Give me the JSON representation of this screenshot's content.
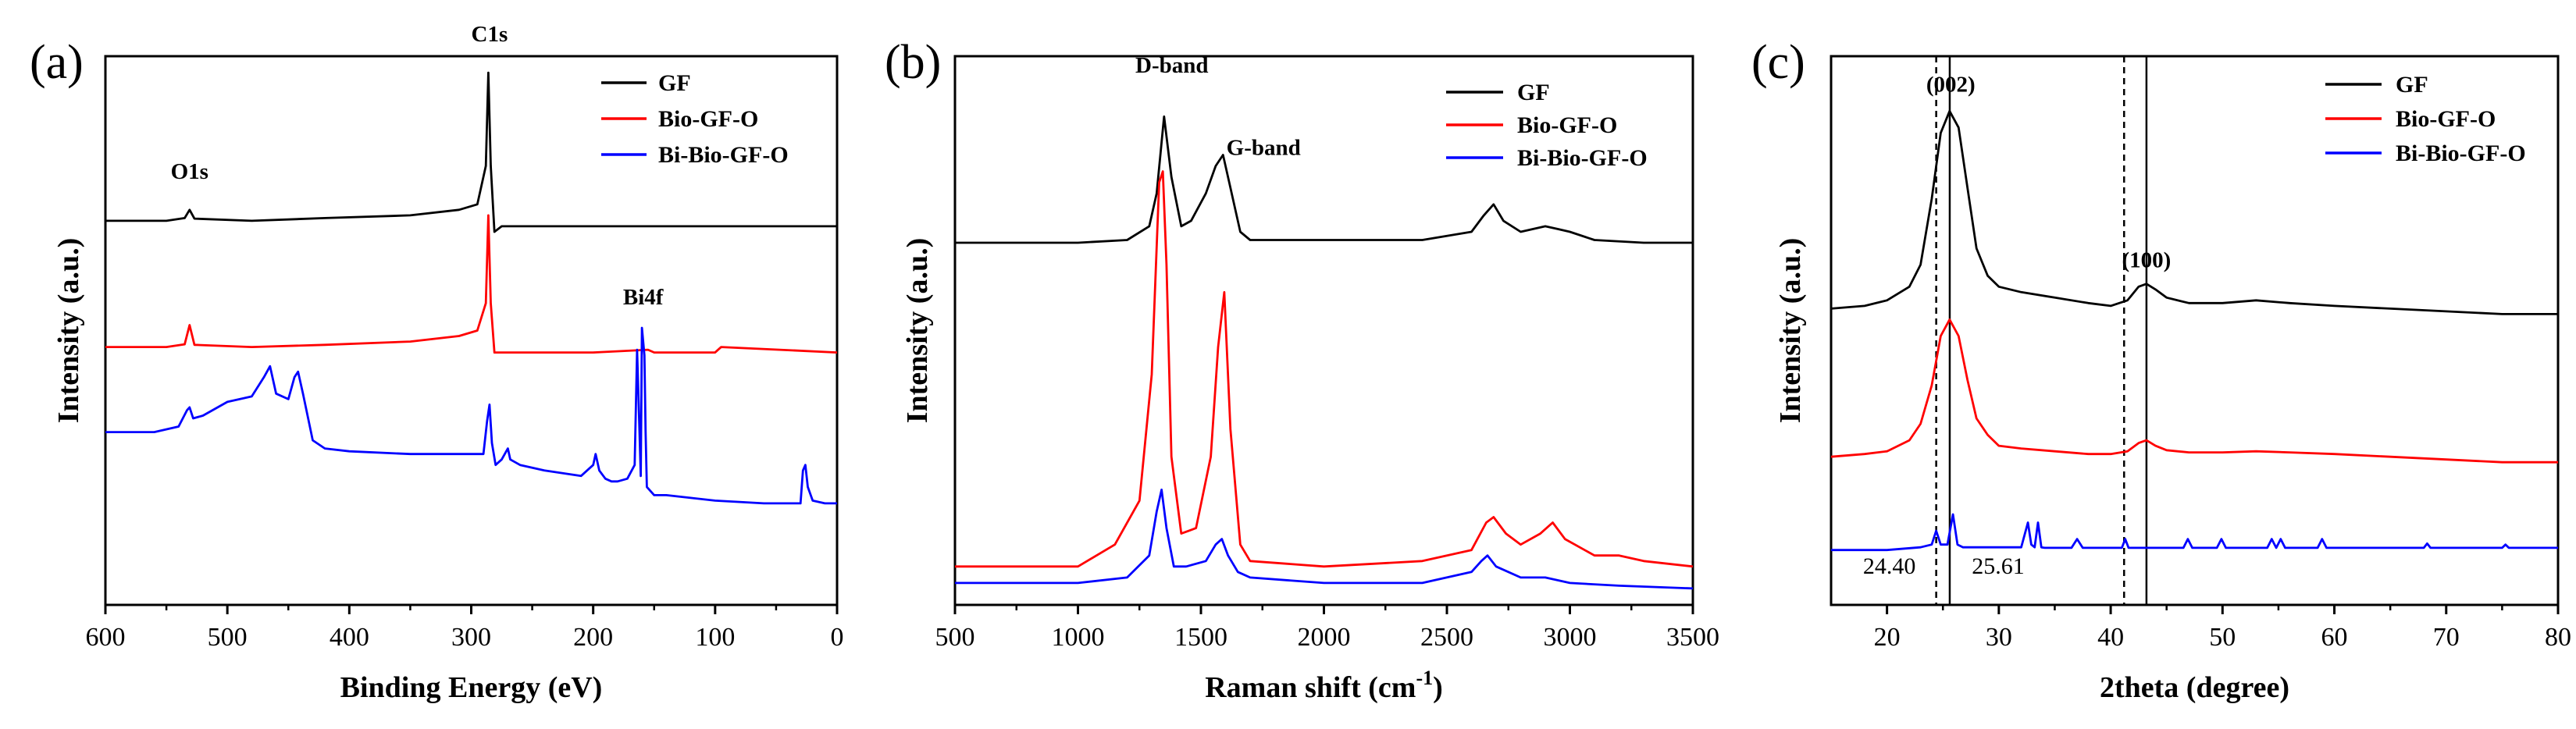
{
  "colors": {
    "GF": "#000000",
    "Bio-GF-O": "#ff0000",
    "Bi-Bio-GF-O": "#0000ff",
    "axis": "#000000"
  },
  "chart_data": [
    {
      "type": "line",
      "panel": "(a)",
      "xlabel": "Binding Energy (eV)",
      "ylabel": "Intensity (a.u.)",
      "xlim": [
        600,
        0
      ],
      "x_reversed": true,
      "y_ticks_shown": false,
      "xticks": [
        "600",
        "500",
        "400",
        "300",
        "200",
        "100",
        "0"
      ],
      "legend": {
        "position": "top-right",
        "entries": [
          "GF",
          "Bio-GF-O",
          "Bi-Bio-GF-O"
        ]
      },
      "annotations": [
        {
          "text": "O1s",
          "x": 531
        },
        {
          "text": "C1s",
          "x": 285
        },
        {
          "text": "Bi4f",
          "x": 159
        }
      ],
      "series": [
        {
          "name": "GF",
          "offset": 0.7,
          "x": [
            600,
            550,
            535,
            531,
            527,
            480,
            420,
            350,
            310,
            295,
            288,
            286,
            284,
            281,
            275,
            200,
            100,
            0
          ],
          "y": [
            0.0,
            0.0,
            0.005,
            0.02,
            0.004,
            0.0,
            0.005,
            0.01,
            0.02,
            0.03,
            0.1,
            0.27,
            0.1,
            -0.02,
            -0.01,
            -0.01,
            -0.01,
            -0.01
          ]
        },
        {
          "name": "Bio-GF-O",
          "offset": 0.47,
          "x": [
            600,
            550,
            535,
            531,
            527,
            480,
            420,
            350,
            310,
            295,
            288,
            286,
            284,
            281,
            275,
            200,
            155,
            150,
            100,
            95,
            0
          ],
          "y": [
            0.0,
            0.0,
            0.005,
            0.04,
            0.004,
            0.0,
            0.004,
            0.01,
            0.02,
            0.03,
            0.08,
            0.24,
            0.08,
            -0.01,
            -0.01,
            -0.01,
            -0.005,
            -0.01,
            -0.01,
            0.0,
            -0.01
          ]
        },
        {
          "name": "Bi-Bio-GF-O",
          "offset": 0.195,
          "x": [
            600,
            560,
            540,
            533,
            531,
            528,
            520,
            500,
            480,
            470,
            465,
            460,
            450,
            445,
            442,
            438,
            430,
            420,
            400,
            350,
            300,
            290,
            287,
            285,
            283,
            280,
            275,
            270,
            268,
            260,
            240,
            210,
            200,
            198,
            195,
            190,
            185,
            180,
            172,
            166,
            164,
            162,
            161,
            160,
            158,
            157,
            156,
            150,
            140,
            120,
            100,
            60,
            30,
            28,
            26,
            24,
            20,
            10,
            0
          ],
          "y": [
            0.12,
            0.12,
            0.13,
            0.16,
            0.165,
            0.145,
            0.15,
            0.175,
            0.185,
            0.22,
            0.24,
            0.19,
            0.18,
            0.22,
            0.23,
            0.19,
            0.105,
            0.09,
            0.085,
            0.08,
            0.08,
            0.08,
            0.14,
            0.17,
            0.1,
            0.06,
            0.07,
            0.09,
            0.07,
            0.06,
            0.05,
            0.04,
            0.06,
            0.08,
            0.05,
            0.035,
            0.03,
            0.03,
            0.035,
            0.06,
            0.27,
            0.12,
            0.04,
            0.31,
            0.26,
            0.12,
            0.02,
            0.005,
            0.005,
            0.0,
            -0.005,
            -0.01,
            -0.01,
            0.05,
            0.06,
            0.02,
            -0.005,
            -0.01,
            -0.01
          ]
        }
      ]
    },
    {
      "type": "line",
      "panel": "(b)",
      "xlabel": "Raman shift (cm",
      "xlabel_sup": "-1",
      "xlabel_end": ")",
      "ylabel": "Intensity (a.u.)",
      "xlim": [
        500,
        3500
      ],
      "y_ticks_shown": false,
      "xticks": [
        "500",
        "1000",
        "1500",
        "2000",
        "2500",
        "3000",
        "3500"
      ],
      "legend": {
        "position": "top-right",
        "entries": [
          "GF",
          "Bio-GF-O",
          "Bi-Bio-GF-O"
        ]
      },
      "annotations": [
        {
          "text": "D-band",
          "x": 1350
        },
        {
          "text": "G-band",
          "x": 1580
        }
      ],
      "series": [
        {
          "name": "GF",
          "offset": 0.66,
          "x": [
            500,
            1000,
            1200,
            1290,
            1320,
            1350,
            1380,
            1420,
            1460,
            1520,
            1560,
            1590,
            1620,
            1660,
            1700,
            2000,
            2400,
            2600,
            2650,
            2690,
            2730,
            2800,
            2900,
            2950,
            3000,
            3100,
            3300,
            3500
          ],
          "y": [
            0.0,
            0.0,
            0.005,
            0.03,
            0.09,
            0.23,
            0.12,
            0.03,
            0.04,
            0.09,
            0.14,
            0.16,
            0.1,
            0.02,
            0.005,
            0.005,
            0.005,
            0.02,
            0.05,
            0.07,
            0.04,
            0.02,
            0.03,
            0.025,
            0.02,
            0.005,
            0.0,
            0.0
          ]
        },
        {
          "name": "Bio-GF-O",
          "offset": 0.07,
          "x": [
            500,
            1000,
            1150,
            1250,
            1300,
            1330,
            1345,
            1360,
            1380,
            1420,
            1480,
            1540,
            1570,
            1595,
            1620,
            1660,
            1700,
            2000,
            2400,
            2600,
            2660,
            2690,
            2740,
            2800,
            2880,
            2930,
            2980,
            3100,
            3200,
            3300,
            3500
          ],
          "y": [
            0.0,
            0.0,
            0.04,
            0.12,
            0.35,
            0.7,
            0.72,
            0.55,
            0.2,
            0.06,
            0.07,
            0.2,
            0.4,
            0.5,
            0.25,
            0.04,
            0.01,
            0.0,
            0.01,
            0.03,
            0.08,
            0.09,
            0.06,
            0.04,
            0.06,
            0.08,
            0.05,
            0.02,
            0.02,
            0.01,
            0.0
          ]
        },
        {
          "name": "Bi-Bio-GF-O",
          "offset": 0.04,
          "x": [
            500,
            1000,
            1200,
            1290,
            1320,
            1340,
            1360,
            1390,
            1440,
            1520,
            1560,
            1585,
            1610,
            1650,
            1700,
            2000,
            2400,
            2600,
            2640,
            2665,
            2700,
            2800,
            2900,
            3000,
            3200,
            3500
          ],
          "y": [
            0.0,
            0.0,
            0.01,
            0.05,
            0.13,
            0.17,
            0.1,
            0.03,
            0.03,
            0.04,
            0.07,
            0.08,
            0.05,
            0.02,
            0.01,
            0.0,
            0.0,
            0.02,
            0.04,
            0.05,
            0.03,
            0.01,
            0.01,
            0.0,
            -0.005,
            -0.01
          ]
        }
      ]
    },
    {
      "type": "line",
      "panel": "(c)",
      "xlabel": "2theta (degree)",
      "ylabel": "Intensity (a.u.)",
      "xlim": [
        15,
        80
      ],
      "y_ticks_shown": false,
      "xticks": [
        "20",
        "30",
        "40",
        "50",
        "60",
        "70",
        "80"
      ],
      "legend": {
        "position": "top-right",
        "entries": [
          "GF",
          "Bio-GF-O",
          "Bi-Bio-GF-O"
        ]
      },
      "annotations": [
        {
          "text": "(002)",
          "x": 25.7
        },
        {
          "text": "(100)",
          "x": 43.2
        },
        {
          "text": "24.40",
          "x": 24.4
        },
        {
          "text": "25.61",
          "x": 25.61
        }
      ],
      "reference_lines": [
        {
          "x": 24.4,
          "style": "dashed"
        },
        {
          "x": 25.61,
          "style": "solid"
        },
        {
          "x": 41.2,
          "style": "dashed"
        },
        {
          "x": 43.2,
          "style": "solid"
        }
      ],
      "series": [
        {
          "name": "GF",
          "offset": 0.54,
          "x": [
            15,
            18,
            20,
            22,
            23,
            24,
            24.8,
            25.6,
            26.4,
            27.2,
            28,
            29,
            30,
            32,
            35,
            38,
            40,
            41.5,
            42.5,
            43.2,
            44,
            45,
            47,
            50,
            53,
            56,
            60,
            65,
            70,
            75,
            78,
            80
          ],
          "y": [
            0.0,
            0.005,
            0.015,
            0.04,
            0.08,
            0.2,
            0.32,
            0.36,
            0.33,
            0.22,
            0.11,
            0.06,
            0.04,
            0.03,
            0.02,
            0.01,
            0.005,
            0.015,
            0.04,
            0.045,
            0.035,
            0.02,
            0.01,
            0.01,
            0.015,
            0.01,
            0.005,
            0.0,
            -0.005,
            -0.01,
            -0.01,
            -0.01
          ]
        },
        {
          "name": "Bio-GF-O",
          "offset": 0.27,
          "x": [
            15,
            18,
            20,
            22,
            23,
            24,
            24.8,
            25.6,
            26.4,
            27.2,
            28,
            29,
            30,
            32,
            35,
            38,
            40,
            41.5,
            42.5,
            43.2,
            44,
            45,
            47,
            50,
            53,
            56,
            60,
            65,
            70,
            75,
            78,
            80
          ],
          "y": [
            0.0,
            0.005,
            0.01,
            0.03,
            0.06,
            0.13,
            0.22,
            0.25,
            0.22,
            0.14,
            0.07,
            0.04,
            0.02,
            0.015,
            0.01,
            0.005,
            0.005,
            0.01,
            0.025,
            0.03,
            0.02,
            0.012,
            0.008,
            0.008,
            0.01,
            0.008,
            0.005,
            0.0,
            -0.005,
            -0.01,
            -0.01,
            -0.01
          ]
        },
        {
          "name": "Bi-Bio-GF-O",
          "offset": 0.1,
          "x": [
            15,
            20,
            23,
            24,
            24.4,
            24.8,
            25.4,
            25.9,
            26.3,
            26.8,
            28,
            30,
            32,
            32.6,
            32.9,
            33.2,
            33.5,
            33.8,
            34.1,
            35,
            36.5,
            37,
            37.5,
            40,
            41,
            41.3,
            41.6,
            44,
            46.5,
            46.9,
            47.3,
            49.5,
            49.9,
            50.3,
            53,
            54,
            54.4,
            54.8,
            55.2,
            55.6,
            56,
            58.5,
            58.9,
            59.3,
            62,
            68,
            68.3,
            68.6,
            72,
            75,
            75.3,
            75.6,
            78,
            80
          ],
          "y": [
            0.0,
            0.0,
            0.005,
            0.01,
            0.035,
            0.01,
            0.01,
            0.065,
            0.01,
            0.005,
            0.005,
            0.005,
            0.005,
            0.05,
            0.01,
            0.005,
            0.05,
            0.005,
            0.004,
            0.004,
            0.004,
            0.02,
            0.004,
            0.004,
            0.004,
            0.02,
            0.004,
            0.004,
            0.004,
            0.02,
            0.004,
            0.004,
            0.02,
            0.004,
            0.004,
            0.004,
            0.02,
            0.004,
            0.02,
            0.004,
            0.004,
            0.004,
            0.02,
            0.004,
            0.004,
            0.004,
            0.012,
            0.004,
            0.004,
            0.004,
            0.01,
            0.004,
            0.004,
            0.004
          ]
        }
      ]
    }
  ]
}
